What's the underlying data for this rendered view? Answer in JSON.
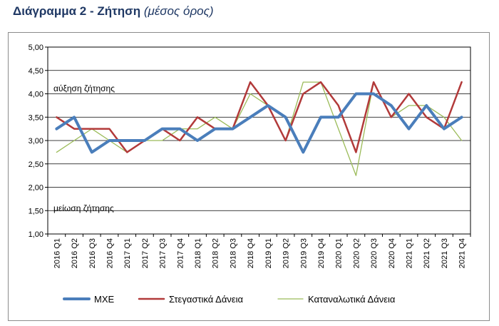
{
  "title": {
    "main": "Διάγραμμα 2 - Ζήτηση",
    "sub": "(μέσος όρος)"
  },
  "chart_data": {
    "type": "line",
    "categories": [
      "2016 Q1",
      "2016 Q2",
      "2016 Q3",
      "2016 Q4",
      "2017 Q1",
      "2017 Q2",
      "2017 Q3",
      "2017 Q4",
      "2018 Q1",
      "2018 Q2",
      "2018 Q3",
      "2018 Q4",
      "2019 Q1",
      "2019 Q2",
      "2019 Q3",
      "2019 Q4",
      "2020 Q1",
      "2020 Q2",
      "2020 Q3",
      "2020 Q4",
      "2021 Q1",
      "2021 Q2",
      "2021 Q3",
      "2021 Q4"
    ],
    "ylim": [
      1.0,
      5.0
    ],
    "yticks": [
      "1,00",
      "1,50",
      "2,00",
      "2,50",
      "3,00",
      "3,50",
      "4,00",
      "4,50",
      "5,00"
    ],
    "grid": true,
    "annotations": {
      "upper": "αύξηση ζήτησης",
      "lower": "μείωση ζήτησης"
    },
    "series": [
      {
        "name": "ΜΧΕ",
        "color": "#4a7ebb",
        "values": [
          3.25,
          3.5,
          2.75,
          3.0,
          3.0,
          3.0,
          3.25,
          3.25,
          3.0,
          3.25,
          3.25,
          3.5,
          3.75,
          3.5,
          2.75,
          3.5,
          3.5,
          4.0,
          4.0,
          3.75,
          3.25,
          3.75,
          3.25,
          3.5
        ]
      },
      {
        "name": "Στεγαστικά Δάνεια",
        "color": "#b23a3a",
        "values": [
          3.5,
          3.25,
          3.25,
          3.25,
          2.75,
          3.0,
          3.25,
          3.0,
          3.5,
          3.25,
          3.25,
          4.25,
          3.75,
          3.0,
          4.0,
          4.25,
          3.75,
          2.75,
          4.25,
          3.5,
          4.0,
          3.5,
          3.25,
          4.25
        ]
      },
      {
        "name": "Καταναλωτικά Δάνεια",
        "color": "#9bbb59",
        "values": [
          2.75,
          3.0,
          3.25,
          3.0,
          2.75,
          3.0,
          3.0,
          3.25,
          3.25,
          3.5,
          3.25,
          4.0,
          3.75,
          3.0,
          4.25,
          4.25,
          3.25,
          2.25,
          4.25,
          3.5,
          3.75,
          3.75,
          3.5,
          3.0
        ]
      }
    ],
    "legend_position": "bottom"
  }
}
